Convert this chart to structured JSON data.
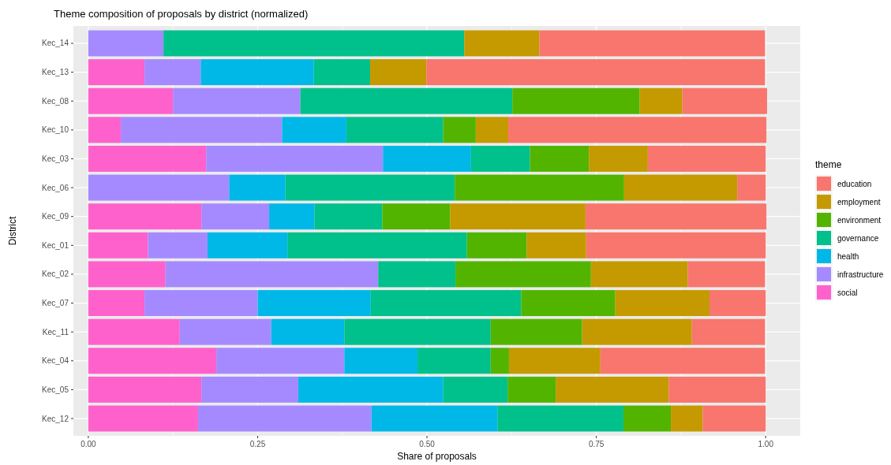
{
  "chart_data": {
    "type": "bar",
    "orientation": "horizontal",
    "stacked": true,
    "title": "Theme composition of proposals by district (normalized)",
    "xlabel": "Share of proposals",
    "ylabel": "District",
    "legend_title": "theme",
    "legend": "right",
    "grid": true,
    "categories": [
      "Kec_14",
      "Kec_13",
      "Kec_08",
      "Kec_10",
      "Kec_03",
      "Kec_06",
      "Kec_09",
      "Kec_01",
      "Kec_02",
      "Kec_07",
      "Kec_11",
      "Kec_04",
      "Kec_05",
      "Kec_12"
    ],
    "xlim": [
      -0.022,
      1.051
    ],
    "xticks": [
      {
        "value": 0,
        "label": "0.00"
      },
      {
        "value": 0.25,
        "label": "0.25"
      },
      {
        "value": 0.5,
        "label": "0.50"
      },
      {
        "value": 0.75,
        "label": "0.75"
      },
      {
        "value": 1,
        "label": "1.00"
      }
    ],
    "series": [
      {
        "name": "social",
        "color": "#ff61cc",
        "values": [
          0,
          0.083,
          0.125,
          0.048,
          0.174,
          0,
          0.167,
          0.088,
          0.114,
          0.083,
          0.135,
          0.189,
          0.167,
          0.162
        ]
      },
      {
        "name": "infrastructure",
        "color": "#a58aff",
        "values": [
          0.111,
          0.083,
          0.188,
          0.238,
          0.261,
          0.208,
          0.1,
          0.088,
          0.314,
          0.167,
          0.135,
          0.189,
          0.143,
          0.256
        ]
      },
      {
        "name": "health",
        "color": "#00b8e7",
        "values": [
          0,
          0.167,
          0,
          0.095,
          0.13,
          0.083,
          0.067,
          0.118,
          0,
          0.167,
          0.108,
          0.108,
          0.214,
          0.186
        ]
      },
      {
        "name": "governance",
        "color": "#00c08b",
        "values": [
          0.444,
          0.083,
          0.313,
          0.143,
          0.087,
          0.25,
          0.1,
          0.265,
          0.114,
          0.222,
          0.216,
          0.108,
          0.095,
          0.186
        ]
      },
      {
        "name": "environment",
        "color": "#53b400",
        "values": [
          0,
          0,
          0.188,
          0.048,
          0.087,
          0.25,
          0.1,
          0.088,
          0.2,
          0.139,
          0.135,
          0.027,
          0.071,
          0.07
        ]
      },
      {
        "name": "employment",
        "color": "#c49a00",
        "values": [
          0.111,
          0.083,
          0.063,
          0.048,
          0.087,
          0.167,
          0.2,
          0.088,
          0.143,
          0.139,
          0.162,
          0.135,
          0.167,
          0.047
        ]
      },
      {
        "name": "education",
        "color": "#f8766d",
        "values": [
          0.333,
          0.5,
          0.125,
          0.381,
          0.174,
          0.042,
          0.267,
          0.265,
          0.114,
          0.083,
          0.108,
          0.243,
          0.143,
          0.093
        ]
      }
    ]
  }
}
